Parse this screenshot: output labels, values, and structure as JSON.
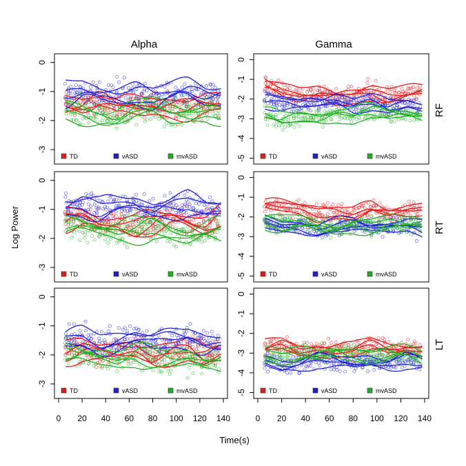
{
  "figure": {
    "col_titles": [
      "Alpha",
      "Gamma"
    ],
    "row_labels": [
      "RF",
      "RT",
      "LT"
    ],
    "xlabel": "Time(s)",
    "ylabel": "Log Power"
  },
  "chart_data": {
    "type": "scatter",
    "xlim": [
      0,
      140
    ],
    "x_ticks": [
      0,
      20,
      40,
      60,
      80,
      100,
      120,
      140
    ],
    "grid": false,
    "legend_position": "bottom-inside",
    "series_groups": [
      {
        "name": "TD",
        "color": "#e31a1c"
      },
      {
        "name": "vASD",
        "color": "#1f1fd6"
      },
      {
        "name": "mvASD",
        "color": "#20b020"
      }
    ],
    "panels": [
      {
        "row": "RF",
        "col": "Alpha",
        "ylim": [
          -3.5,
          0.3
        ],
        "y_ticks": [
          0,
          -1,
          -2,
          -3
        ],
        "series": [
          {
            "name": "TD",
            "x": [
              5,
              20,
              35,
              50,
              65,
              80,
              95,
              110,
              125,
              140
            ],
            "y": [
              -1.4,
              -1.5,
              -1.3,
              -1.6,
              -1.5,
              -1.4,
              -1.5,
              -1.6,
              -1.5,
              -1.4
            ]
          },
          {
            "name": "vASD",
            "x": [
              5,
              20,
              35,
              50,
              65,
              80,
              95,
              110,
              125,
              140
            ],
            "y": [
              -1.1,
              -1.0,
              -1.2,
              -1.1,
              -1.0,
              -1.2,
              -1.1,
              -1.0,
              -1.1,
              -1.0
            ]
          },
          {
            "name": "mvASD",
            "x": [
              5,
              20,
              35,
              50,
              65,
              80,
              95,
              110,
              125,
              140
            ],
            "y": [
              -1.6,
              -1.7,
              -1.8,
              -1.9,
              -1.7,
              -1.6,
              -1.8,
              -1.7,
              -1.6,
              -1.8
            ]
          }
        ]
      },
      {
        "row": "RF",
        "col": "Gamma",
        "ylim": [
          -5.3,
          0.3
        ],
        "y_ticks": [
          0,
          -1,
          -2,
          -3,
          -4,
          -5
        ],
        "series": [
          {
            "name": "TD",
            "x": [
              5,
              20,
              35,
              50,
              65,
              80,
              95,
              110,
              125,
              140
            ],
            "y": [
              -1.2,
              -1.6,
              -1.8,
              -1.7,
              -1.9,
              -1.8,
              -1.6,
              -1.8,
              -1.7,
              -1.6
            ]
          },
          {
            "name": "vASD",
            "x": [
              5,
              20,
              35,
              50,
              65,
              80,
              95,
              110,
              125,
              140
            ],
            "y": [
              -2.0,
              -2.2,
              -2.3,
              -2.2,
              -2.0,
              -2.3,
              -2.1,
              -2.4,
              -2.2,
              -2.5
            ]
          },
          {
            "name": "mvASD",
            "x": [
              5,
              20,
              35,
              50,
              65,
              80,
              95,
              110,
              125,
              140
            ],
            "y": [
              -2.8,
              -3.1,
              -3.0,
              -2.9,
              -2.7,
              -2.9,
              -2.6,
              -2.8,
              -2.7,
              -2.9
            ]
          }
        ]
      },
      {
        "row": "RT",
        "col": "Alpha",
        "ylim": [
          -3.5,
          0.3
        ],
        "y_ticks": [
          0,
          -1,
          -2,
          -3
        ],
        "series": [
          {
            "name": "TD",
            "x": [
              5,
              20,
              35,
              50,
              65,
              80,
              95,
              110,
              125,
              140
            ],
            "y": [
              -1.4,
              -1.3,
              -1.5,
              -1.4,
              -1.6,
              -1.5,
              -1.3,
              -1.4,
              -1.5,
              -1.2
            ]
          },
          {
            "name": "vASD",
            "x": [
              5,
              20,
              35,
              50,
              65,
              80,
              95,
              110,
              125,
              140
            ],
            "y": [
              -0.9,
              -0.8,
              -1.0,
              -0.9,
              -0.8,
              -1.0,
              -0.9,
              -0.8,
              -1.0,
              -0.9
            ]
          },
          {
            "name": "mvASD",
            "x": [
              5,
              20,
              35,
              50,
              65,
              80,
              95,
              110,
              125,
              140
            ],
            "y": [
              -1.5,
              -1.6,
              -1.7,
              -1.8,
              -1.7,
              -1.6,
              -1.8,
              -1.9,
              -1.8,
              -1.7
            ]
          }
        ]
      },
      {
        "row": "RT",
        "col": "Gamma",
        "ylim": [
          -5.3,
          0.3
        ],
        "y_ticks": [
          0,
          -1,
          -2,
          -3,
          -4,
          -5
        ],
        "series": [
          {
            "name": "TD",
            "x": [
              5,
              20,
              35,
              50,
              65,
              80,
              95,
              110,
              125,
              140
            ],
            "y": [
              -1.4,
              -1.5,
              -1.6,
              -1.8,
              -1.7,
              -1.9,
              -1.5,
              -1.8,
              -1.7,
              -1.6
            ]
          },
          {
            "name": "vASD",
            "x": [
              5,
              20,
              35,
              50,
              65,
              80,
              95,
              110,
              125,
              140
            ],
            "y": [
              -2.3,
              -2.5,
              -2.4,
              -2.6,
              -2.5,
              -2.4,
              -2.6,
              -2.5,
              -2.4,
              -2.7
            ]
          },
          {
            "name": "mvASD",
            "x": [
              5,
              20,
              35,
              50,
              65,
              80,
              95,
              110,
              125,
              140
            ],
            "y": [
              -2.2,
              -2.4,
              -2.3,
              -2.5,
              -2.6,
              -2.4,
              -2.5,
              -2.3,
              -2.4,
              -2.2
            ]
          }
        ]
      },
      {
        "row": "LT",
        "col": "Alpha",
        "ylim": [
          -3.5,
          0.3
        ],
        "y_ticks": [
          0,
          -1,
          -2,
          -3
        ],
        "series": [
          {
            "name": "TD",
            "x": [
              5,
              20,
              35,
              50,
              65,
              80,
              95,
              110,
              125,
              140
            ],
            "y": [
              -1.9,
              -1.8,
              -2.0,
              -1.9,
              -1.8,
              -2.0,
              -1.9,
              -1.8,
              -2.0,
              -1.9
            ]
          },
          {
            "name": "vASD",
            "x": [
              5,
              20,
              35,
              50,
              65,
              80,
              95,
              110,
              125,
              140
            ],
            "y": [
              -1.5,
              -1.4,
              -1.6,
              -1.5,
              -1.4,
              -1.6,
              -1.5,
              -1.4,
              -1.6,
              -1.5
            ]
          },
          {
            "name": "mvASD",
            "x": [
              5,
              20,
              35,
              50,
              65,
              80,
              95,
              110,
              125,
              140
            ],
            "y": [
              -1.9,
              -2.0,
              -2.1,
              -2.2,
              -2.0,
              -2.1,
              -2.2,
              -2.1,
              -2.3,
              -2.2
            ]
          }
        ]
      },
      {
        "row": "LT",
        "col": "Gamma",
        "ylim": [
          -5.3,
          0.3
        ],
        "y_ticks": [
          0,
          -1,
          -2,
          -3,
          -4,
          -5
        ],
        "series": [
          {
            "name": "TD",
            "x": [
              5,
              20,
              35,
              50,
              65,
              80,
              95,
              110,
              125,
              140
            ],
            "y": [
              -2.8,
              -2.6,
              -2.9,
              -2.7,
              -2.8,
              -2.9,
              -2.6,
              -2.8,
              -2.7,
              -2.8
            ]
          },
          {
            "name": "vASD",
            "x": [
              5,
              20,
              35,
              50,
              65,
              80,
              95,
              110,
              125,
              140
            ],
            "y": [
              -3.4,
              -3.6,
              -3.5,
              -3.3,
              -3.5,
              -3.6,
              -3.4,
              -3.5,
              -3.3,
              -3.5
            ]
          },
          {
            "name": "mvASD",
            "x": [
              5,
              20,
              35,
              50,
              65,
              80,
              95,
              110,
              125,
              140
            ],
            "y": [
              -3.1,
              -3.2,
              -3.0,
              -3.1,
              -2.9,
              -3.0,
              -3.2,
              -3.1,
              -3.0,
              -3.2
            ]
          }
        ]
      }
    ]
  }
}
